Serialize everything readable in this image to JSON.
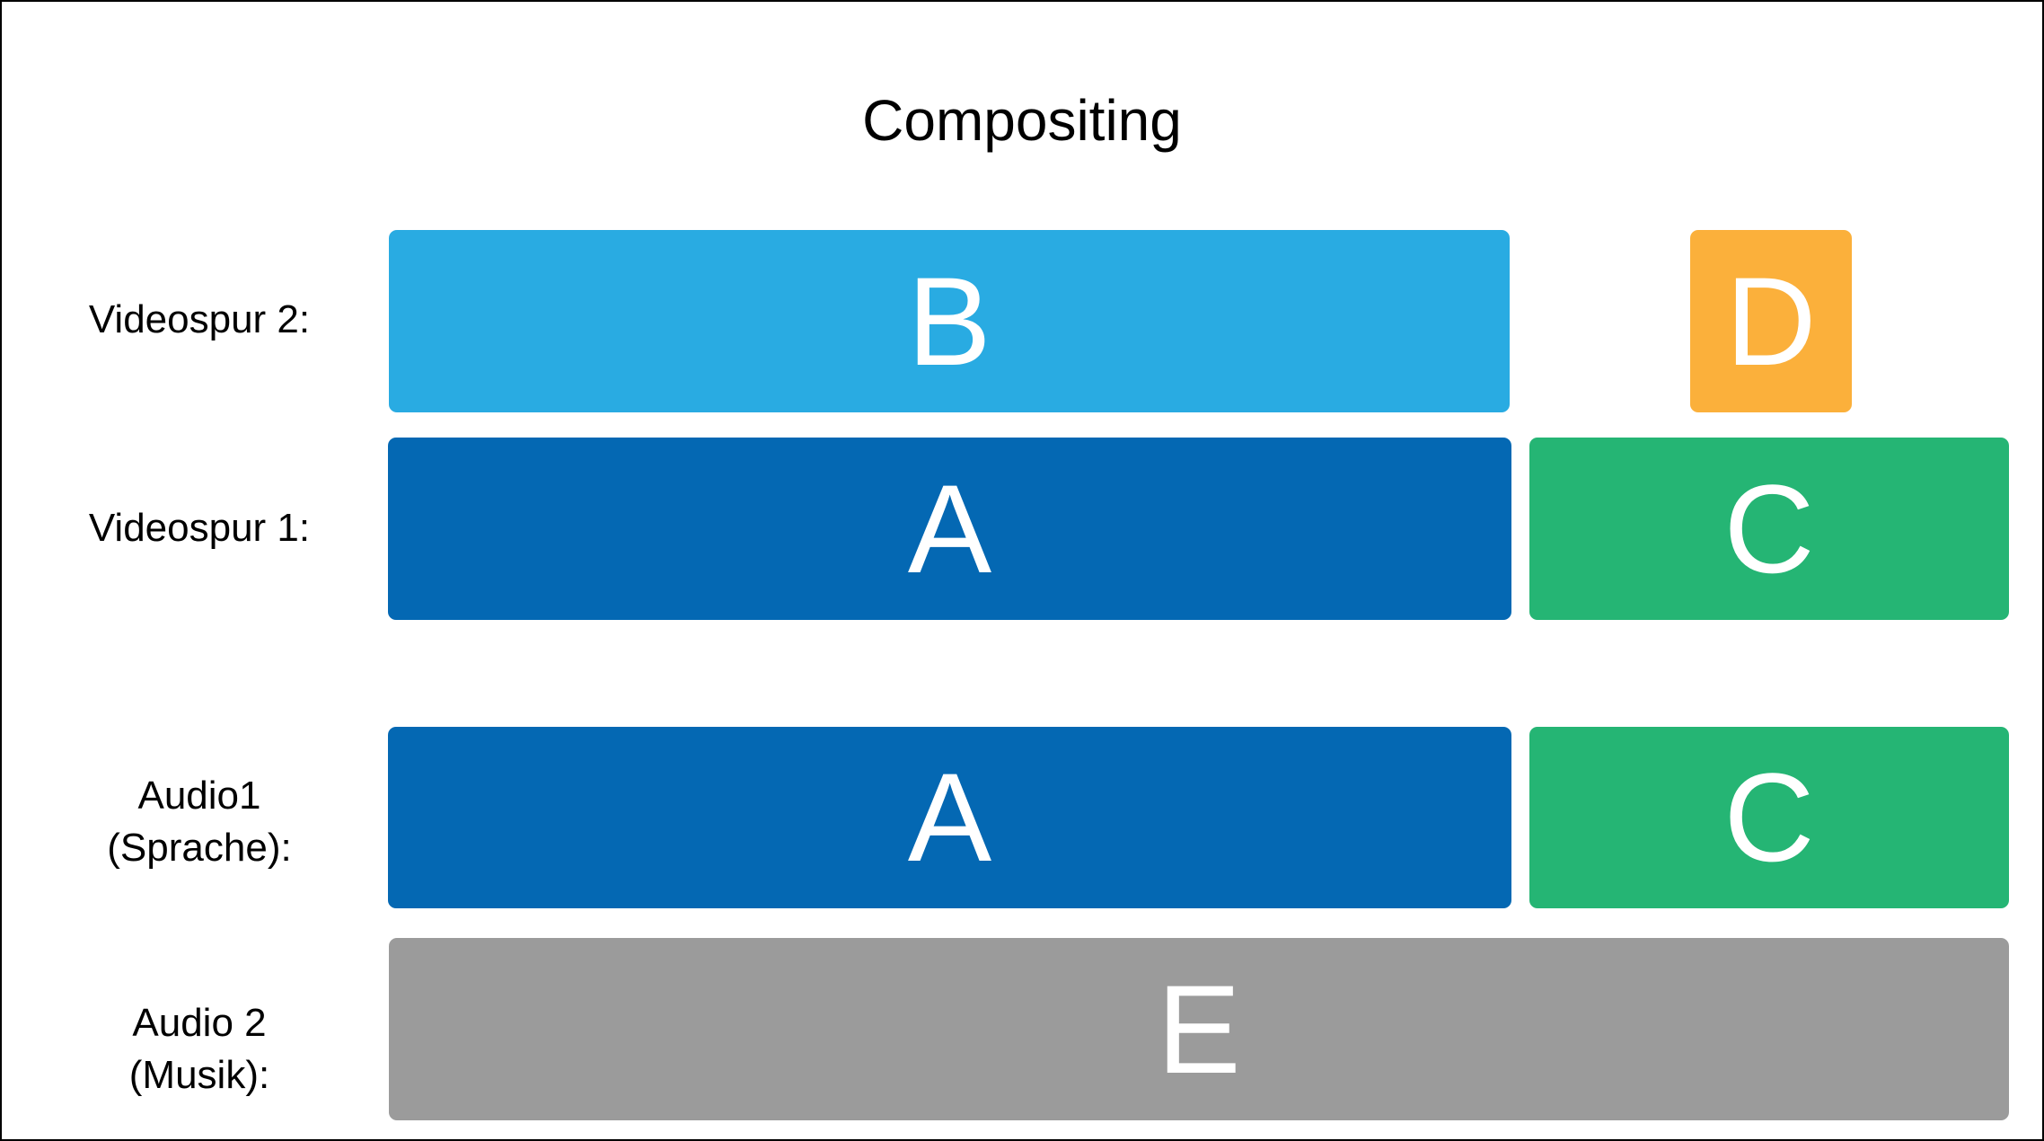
{
  "title": "Compositing",
  "tracks": {
    "video2": {
      "label": "Videospur 2:"
    },
    "video1": {
      "label": "Videospur 1:"
    },
    "audio1": {
      "label_line1": "Audio1",
      "label_line2": "(Sprache):"
    },
    "audio2": {
      "label_line1": "Audio 2",
      "label_line2": "(Musik):"
    }
  },
  "clips": {
    "video2_b": {
      "letter": "B",
      "color": "#29abe2"
    },
    "video2_d": {
      "letter": "D",
      "color": "#fbb03b"
    },
    "video1_a": {
      "letter": "A",
      "color": "#0468b3"
    },
    "video1_c": {
      "letter": "C",
      "color": "#25b574"
    },
    "audio1_a": {
      "letter": "A",
      "color": "#0468b3"
    },
    "audio1_c": {
      "letter": "C",
      "color": "#25b574"
    },
    "audio2_e": {
      "letter": "E",
      "color": "#9b9b9b"
    }
  }
}
